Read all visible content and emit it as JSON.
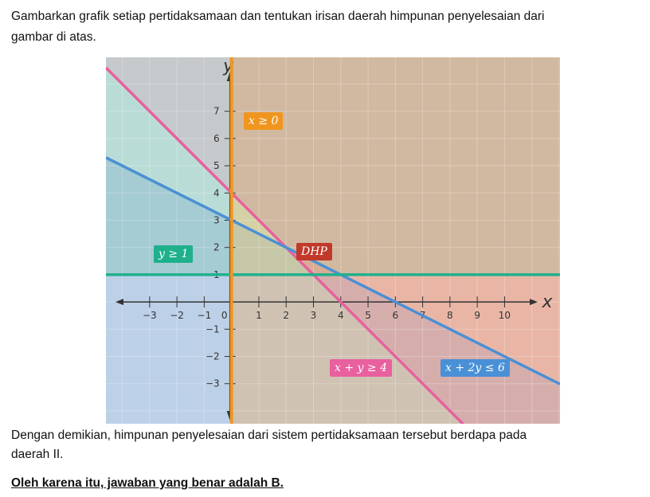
{
  "question": {
    "line1": "Gambarkan grafik setiap pertidaksamaan dan tentukan irisan daerah himpunan penyelesaian dari",
    "line2": "gambar di atas."
  },
  "conclusion": {
    "line1": "Dengan demikian, himpunan penyelesaian dari sistem pertidaksamaan tersebut berdapa pada",
    "line2": "daerah II."
  },
  "answer": "Oleh karena itu, jawaban yang benar adalah B.",
  "chart_data": {
    "type": "line",
    "xlabel": "x",
    "ylabel": "y",
    "xlim": [
      -4.6,
      12.03
    ],
    "ylim": [
      -4.47,
      8.98
    ],
    "xticks": [
      -3,
      -2,
      -1,
      0,
      1,
      2,
      3,
      4,
      5,
      6,
      7,
      8,
      9,
      10
    ],
    "yticks": [
      -3,
      -2,
      -1,
      1,
      2,
      3,
      4,
      5,
      6,
      7
    ],
    "lines": [
      {
        "name": "x + y ≥ 4",
        "a": 1,
        "b": 1,
        "c": 4,
        "color": "#e8609e"
      },
      {
        "name": "x + 2y ≤ 6",
        "a": 1,
        "b": 2,
        "c": 6,
        "color": "#4a90d6"
      },
      {
        "name": "y ≥ 1",
        "a": 0,
        "b": 1,
        "c": 1,
        "color": "#1fb08c"
      },
      {
        "name": "x ≥ 0",
        "a": 1,
        "b": 0,
        "c": 0,
        "color": "#f0961e"
      }
    ],
    "labels": {
      "x0": "x ≥ 0",
      "y1": "y ≥ 1",
      "dhp": "DHP",
      "pink": "x + y ≥ 4",
      "blue": "x + 2y ≤ 6"
    },
    "label_colors": {
      "x0": "#f0961e",
      "y1": "#1fb08c",
      "dhp": "#c0392b",
      "pink": "#e8609e",
      "blue": "#4a90d6"
    }
  }
}
